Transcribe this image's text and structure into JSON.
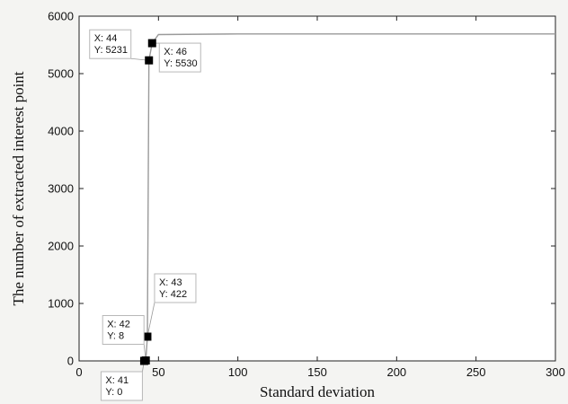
{
  "chart_data": {
    "type": "line",
    "title": "",
    "xlabel": "Standard deviation",
    "ylabel": "The number of extracted interest point",
    "xlim": [
      0,
      300
    ],
    "ylim": [
      0,
      6000
    ],
    "xticks": [
      0,
      50,
      100,
      150,
      200,
      250,
      300
    ],
    "yticks": [
      0,
      1000,
      2000,
      3000,
      4000,
      5000,
      6000
    ],
    "grid": false,
    "series": [
      {
        "x": [
          41,
          42,
          43,
          44,
          46,
          50,
          100,
          150,
          200,
          250,
          300
        ],
        "y": [
          0,
          8,
          422,
          5231,
          5530,
          5680,
          5690,
          5690,
          5690,
          5690,
          5690
        ],
        "color": "#9a9a9a"
      }
    ],
    "markers": [
      {
        "x": 41,
        "y": 0
      },
      {
        "x": 42,
        "y": 8
      },
      {
        "x": 43,
        "y": 422
      },
      {
        "x": 44,
        "y": 5231
      },
      {
        "x": 46,
        "y": 5530
      }
    ],
    "datatips": [
      {
        "x_text": "X: 41",
        "y_text": "Y: 0"
      },
      {
        "x_text": "X: 42",
        "y_text": "Y: 8"
      },
      {
        "x_text": "X: 43",
        "y_text": "Y: 422"
      },
      {
        "x_text": "X: 44",
        "y_text": "Y: 5231"
      },
      {
        "x_text": "X: 46",
        "y_text": "Y: 5530"
      }
    ]
  }
}
